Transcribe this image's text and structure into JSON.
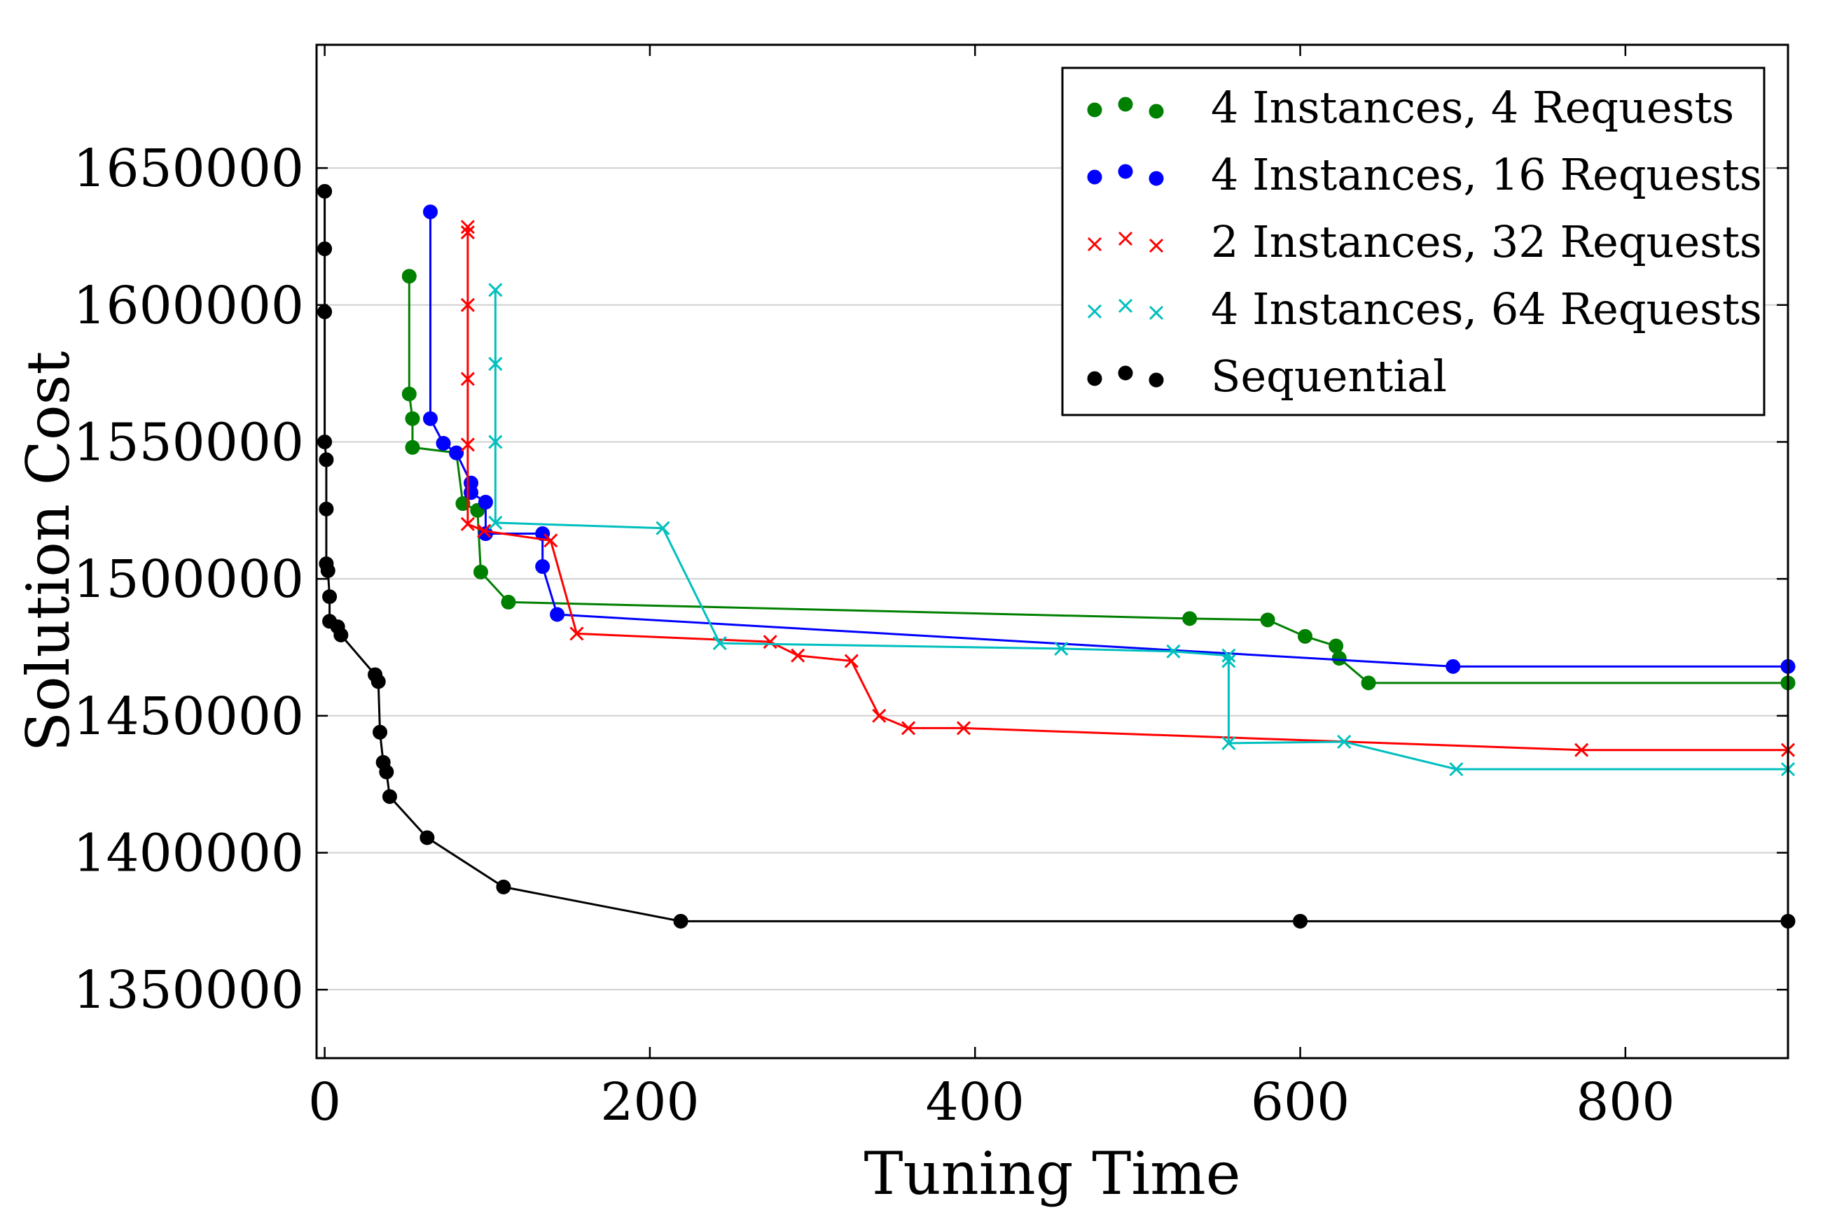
{
  "chart_data": {
    "type": "line",
    "title": "",
    "xlabel": "Tuning Time",
    "ylabel": "Solution Cost",
    "xlim": [
      -5,
      900
    ],
    "ylim": [
      1325000,
      1695000
    ],
    "xticks": [
      0,
      200,
      400,
      600,
      800
    ],
    "yticks": [
      1350000,
      1400000,
      1450000,
      1500000,
      1550000,
      1600000,
      1650000
    ],
    "grid": "horizontal",
    "legend_position": "top-right",
    "series": [
      {
        "name": "4 Instances, 4 Requests",
        "color": "#008000",
        "marker": "circle",
        "points": [
          [
            52,
            1610500
          ],
          [
            52,
            1567500
          ],
          [
            54,
            1558500
          ],
          [
            54,
            1548000
          ],
          [
            81,
            1546000
          ],
          [
            85,
            1527500
          ],
          [
            94,
            1525000
          ],
          [
            96,
            1502500
          ],
          [
            113,
            1491500
          ],
          [
            532,
            1485500
          ],
          [
            580,
            1485000
          ],
          [
            603,
            1479000
          ],
          [
            622,
            1475500
          ],
          [
            624,
            1471000
          ],
          [
            642,
            1462000
          ],
          [
            900,
            1462000
          ]
        ]
      },
      {
        "name": "4 Instances, 16 Requests",
        "color": "#0000ff",
        "marker": "circle",
        "points": [
          [
            65,
            1634000
          ],
          [
            65,
            1558500
          ],
          [
            73,
            1549500
          ],
          [
            81,
            1546000
          ],
          [
            90,
            1535000
          ],
          [
            90,
            1531500
          ],
          [
            99,
            1528000
          ],
          [
            99,
            1516500
          ],
          [
            134,
            1516500
          ],
          [
            134,
            1504500
          ],
          [
            143,
            1487000
          ],
          [
            694,
            1468000
          ],
          [
            900,
            1468000
          ]
        ]
      },
      {
        "name": "2 Instances, 32 Requests",
        "color": "#ff0000",
        "marker": "x",
        "points": [
          [
            88,
            1628500
          ],
          [
            88,
            1626500
          ],
          [
            88,
            1600000
          ],
          [
            88,
            1573000
          ],
          [
            88,
            1549000
          ],
          [
            88,
            1520000
          ],
          [
            98,
            1517500
          ],
          [
            139,
            1514000
          ],
          [
            155,
            1480000
          ],
          [
            274,
            1477000
          ],
          [
            291,
            1472000
          ],
          [
            324,
            1470000
          ],
          [
            341,
            1450000
          ],
          [
            359,
            1445500
          ],
          [
            393,
            1445500
          ],
          [
            773,
            1437500
          ],
          [
            900,
            1437500
          ]
        ]
      },
      {
        "name": "4 Instances, 64 Requests",
        "color": "#00bfbf",
        "marker": "x",
        "points": [
          [
            105,
            1605500
          ],
          [
            105,
            1578500
          ],
          [
            105,
            1550000
          ],
          [
            105,
            1520500
          ],
          [
            208,
            1518500
          ],
          [
            243,
            1476500
          ],
          [
            453,
            1474500
          ],
          [
            522,
            1473500
          ],
          [
            556,
            1472000
          ],
          [
            556,
            1470000
          ],
          [
            556,
            1440000
          ],
          [
            627,
            1440500
          ],
          [
            696,
            1430500
          ],
          [
            900,
            1430500
          ]
        ]
      },
      {
        "name": "Sequential",
        "color": "#000000",
        "marker": "circle",
        "points": [
          [
            0,
            1641500
          ],
          [
            0,
            1620500
          ],
          [
            0,
            1597500
          ],
          [
            0,
            1550000
          ],
          [
            1,
            1543500
          ],
          [
            1,
            1525500
          ],
          [
            1,
            1505500
          ],
          [
            2,
            1503000
          ],
          [
            3,
            1493500
          ],
          [
            3,
            1484500
          ],
          [
            8,
            1482500
          ],
          [
            10,
            1479500
          ],
          [
            31,
            1465000
          ],
          [
            33,
            1462500
          ],
          [
            34,
            1444000
          ],
          [
            36,
            1433000
          ],
          [
            38,
            1429500
          ],
          [
            40,
            1420500
          ],
          [
            63,
            1405500
          ],
          [
            110,
            1387500
          ],
          [
            219,
            1375000
          ],
          [
            600,
            1375000
          ],
          [
            900,
            1375000
          ]
        ]
      }
    ]
  }
}
